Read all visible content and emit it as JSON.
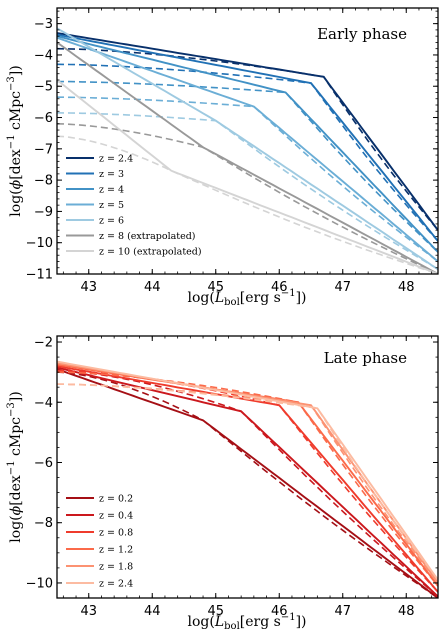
{
  "chart_data": [
    {
      "type": "line",
      "annotation": "Early phase",
      "xlabel": "log(L_bol[erg s^-1])",
      "ylabel": "log(ϕ[dex^-1 cMpc^-3])",
      "xlim": [
        42.5,
        48.5
      ],
      "ylim": [
        -11,
        -2.5
      ],
      "xticks": [
        43,
        44,
        45,
        46,
        47,
        48
      ],
      "yticks": [
        -3,
        -4,
        -5,
        -6,
        -7,
        -8,
        -9,
        -10,
        -11
      ],
      "legend_position": "lower-left",
      "series": [
        {
          "name": "z = 2.4",
          "color": "#08306b",
          "knee": [
            46.7,
            -4.7
          ],
          "solid_start": -3.3,
          "dash_start": -3.8,
          "end": -9.6
        },
        {
          "name": "z = 3",
          "color": "#2171b5",
          "knee": [
            46.5,
            -4.9
          ],
          "solid_start": -3.35,
          "dash_start": -4.3,
          "end": -9.95
        },
        {
          "name": "z = 4",
          "color": "#4292c6",
          "knee": [
            46.1,
            -5.2
          ],
          "solid_start": -3.4,
          "dash_start": -4.85,
          "end": -10.3
        },
        {
          "name": "z = 5",
          "color": "#6baed6",
          "knee": [
            45.6,
            -5.65
          ],
          "solid_start": -3.45,
          "dash_start": -5.35,
          "end": -10.6
        },
        {
          "name": "z = 6",
          "color": "#9ecae1",
          "knee": [
            45.0,
            -6.1
          ],
          "solid_start": -3.15,
          "dash_start": -5.85,
          "end": -10.85
        },
        {
          "name": "z = 8 (extrapolated)",
          "color": "#999999",
          "knee": [
            44.8,
            -6.95
          ],
          "solid_start": -3.6,
          "dash_start": -6.2,
          "end": -11.0
        },
        {
          "name": "z = 10 (extrapolated)",
          "color": "#d4d4d4",
          "knee": [
            44.3,
            -7.7
          ],
          "solid_start": -4.8,
          "dash_start": -6.6,
          "end": -11.0
        }
      ]
    },
    {
      "type": "line",
      "annotation": "Late phase",
      "xlabel": "log(L_bol[erg s^-1])",
      "ylabel": "log(ϕ[dex^-1 cMpc^-3])",
      "xlim": [
        42.5,
        48.5
      ],
      "ylim": [
        -10.5,
        -1.8
      ],
      "xticks": [
        43,
        44,
        45,
        46,
        47,
        48
      ],
      "yticks": [
        -2,
        -4,
        -6,
        -8,
        -10
      ],
      "legend_position": "lower-left",
      "series": [
        {
          "name": "z = 0.2",
          "color": "#a50f15",
          "knee": [
            44.8,
            -4.6
          ],
          "solid_start": -2.9,
          "dash_start": -3.0,
          "end": -10.5
        },
        {
          "name": "z = 0.4",
          "color": "#cb181d",
          "knee": [
            45.4,
            -4.3
          ],
          "solid_start": -2.85,
          "dash_start": -2.95,
          "end": -10.45
        },
        {
          "name": "z = 0.8",
          "color": "#ef3b2c",
          "knee": [
            46.0,
            -4.1
          ],
          "solid_start": -2.8,
          "dash_start": -2.95,
          "end": -10.3
        },
        {
          "name": "z = 1.2",
          "color": "#fb6a4a",
          "knee": [
            46.3,
            -4.0
          ],
          "solid_start": -2.75,
          "dash_start": -3.0,
          "end": -10.1
        },
        {
          "name": "z = 1.8",
          "color": "#fc9272",
          "knee": [
            46.5,
            -4.1
          ],
          "solid_start": -2.7,
          "dash_start": -3.4,
          "end": -10.0
        },
        {
          "name": "z = 2.4",
          "color": "#fcbba1",
          "knee": [
            46.6,
            -4.2
          ],
          "solid_start": -2.65,
          "dash_start": -3.4,
          "end": -9.9
        }
      ]
    }
  ]
}
